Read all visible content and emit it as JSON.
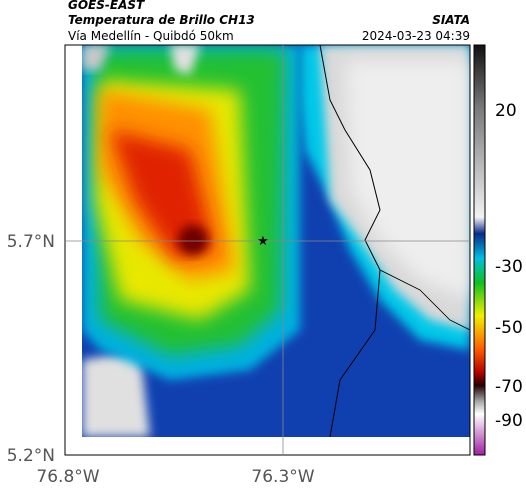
{
  "header": {
    "satellite": "GOES-EAST",
    "product": "Temperatura de Brillo CH13",
    "route": "Vía Medellín - Quibdó 50km",
    "source": "SIATA",
    "timestamp": "2024-03-23 04:39"
  },
  "axes": {
    "lat_ticks": [
      "5.7°N",
      "5.2°N"
    ],
    "lon_ticks": [
      "76.8°W",
      "76.3°W"
    ]
  },
  "colorbar": {
    "ticks": [
      "20",
      "-30",
      "-50",
      "-70",
      "-90"
    ]
  }
}
